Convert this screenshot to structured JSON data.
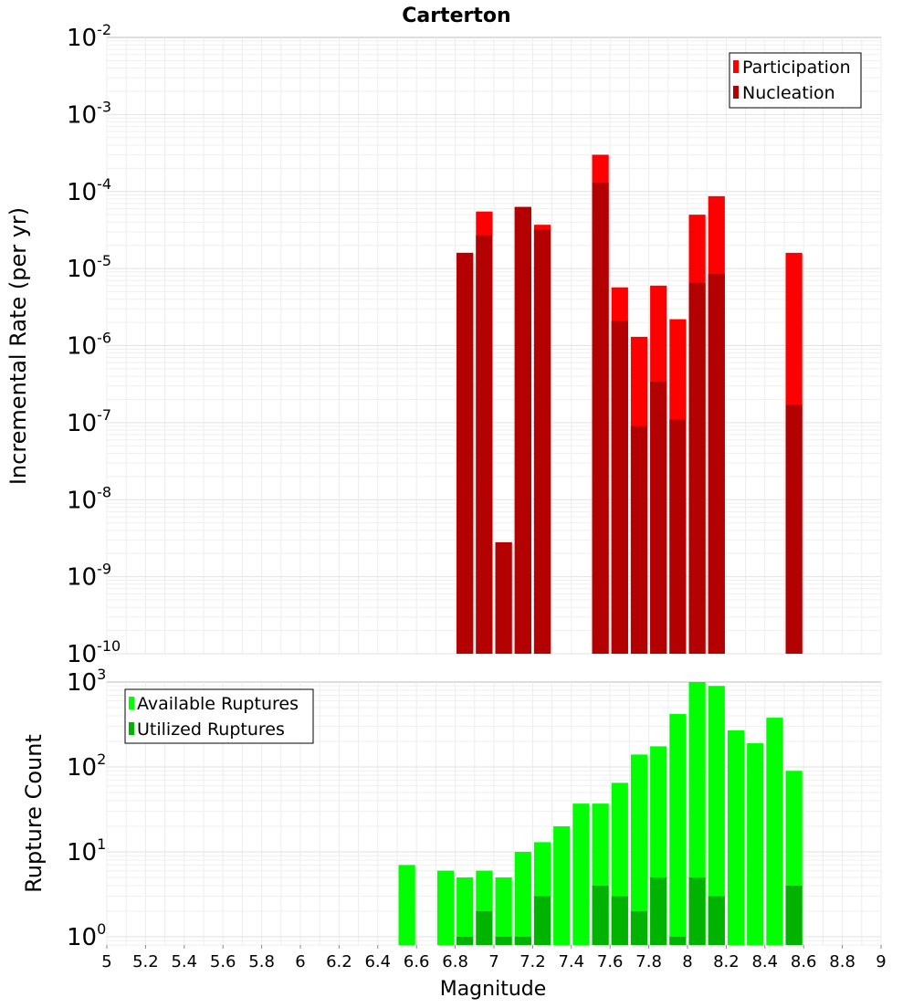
{
  "chart_data": [
    {
      "type": "bar",
      "title": "Carterton",
      "ylabel": "Incremental Rate (per yr)",
      "yscale": "log",
      "ylim": [
        1e-10,
        0.01
      ],
      "ytick_labels": [
        {
          "base": "10",
          "exp": "-10"
        },
        {
          "base": "10",
          "exp": "-9"
        },
        {
          "base": "10",
          "exp": "-8"
        },
        {
          "base": "10",
          "exp": "-7"
        },
        {
          "base": "10",
          "exp": "-6"
        },
        {
          "base": "10",
          "exp": "-5"
        },
        {
          "base": "10",
          "exp": "-4"
        },
        {
          "base": "10",
          "exp": "-3"
        },
        {
          "base": "10",
          "exp": "-2"
        }
      ],
      "xlim": [
        5,
        9
      ],
      "bar_width": 0.1,
      "grid": true,
      "legend_position": "top-right",
      "series": [
        {
          "name": "Participation",
          "color": "#ff0000",
          "x": [
            6.85,
            6.95,
            7.05,
            7.15,
            7.25,
            7.55,
            7.65,
            7.75,
            7.85,
            7.95,
            8.05,
            8.15,
            8.55
          ],
          "values": [
            1.6e-05,
            5.5e-05,
            2.8e-09,
            6.3e-05,
            3.7e-05,
            0.0003,
            5.7e-06,
            1.3e-06,
            6e-06,
            2.2e-06,
            5e-05,
            8.7e-05,
            1.6e-05
          ]
        },
        {
          "name": "Nucleation",
          "color": "#b30000",
          "x": [
            6.85,
            6.95,
            7.05,
            7.15,
            7.25,
            7.55,
            7.65,
            7.75,
            7.85,
            7.95,
            8.05,
            8.15,
            8.55
          ],
          "values": [
            1.6e-05,
            2.7e-05,
            2.8e-09,
            6.3e-05,
            3.2e-05,
            0.00013,
            2.1e-06,
            9e-08,
            3.4e-07,
            1.1e-07,
            6.5e-06,
            8.5e-06,
            1.7e-07
          ]
        }
      ]
    },
    {
      "type": "bar",
      "title": "",
      "ylabel": "Rupture Count",
      "xlabel": "Magnitude",
      "yscale": "log",
      "ylim": [
        0.8,
        1000
      ],
      "ytick_labels": [
        {
          "base": "10",
          "exp": "0",
          "value": 1
        },
        {
          "base": "10",
          "exp": "1",
          "value": 10
        },
        {
          "base": "10",
          "exp": "2",
          "value": 100
        },
        {
          "base": "10",
          "exp": "3",
          "value": 1000
        }
      ],
      "xlim": [
        5,
        9
      ],
      "xtick_labels": [
        "5",
        "5.2",
        "5.4",
        "5.6",
        "5.8",
        "6",
        "6.2",
        "6.4",
        "6.6",
        "6.8",
        "7",
        "7.2",
        "7.4",
        "7.6",
        "7.8",
        "8",
        "8.2",
        "8.4",
        "8.6",
        "8.8",
        "9"
      ],
      "bar_width": 0.1,
      "grid": true,
      "legend_position": "top-left",
      "series": [
        {
          "name": "Available Ruptures",
          "color": "#00ff00",
          "x": [
            6.55,
            6.75,
            6.85,
            6.95,
            7.05,
            7.15,
            7.25,
            7.35,
            7.45,
            7.55,
            7.65,
            7.75,
            7.85,
            7.95,
            8.05,
            8.15,
            8.25,
            8.35,
            8.45,
            8.55
          ],
          "values": [
            7,
            6,
            5,
            6,
            5,
            10,
            13,
            20,
            37,
            37,
            65,
            140,
            175,
            420,
            1000,
            900,
            270,
            190,
            380,
            90
          ]
        },
        {
          "name": "Utilized Ruptures",
          "color": "#00b300",
          "x": [
            6.85,
            6.95,
            7.05,
            7.15,
            7.25,
            7.55,
            7.65,
            7.75,
            7.85,
            7.95,
            8.05,
            8.15,
            8.55
          ],
          "values": [
            1,
            2,
            1,
            1,
            3,
            4,
            3,
            2,
            5,
            1,
            5,
            3,
            4
          ]
        }
      ]
    }
  ]
}
